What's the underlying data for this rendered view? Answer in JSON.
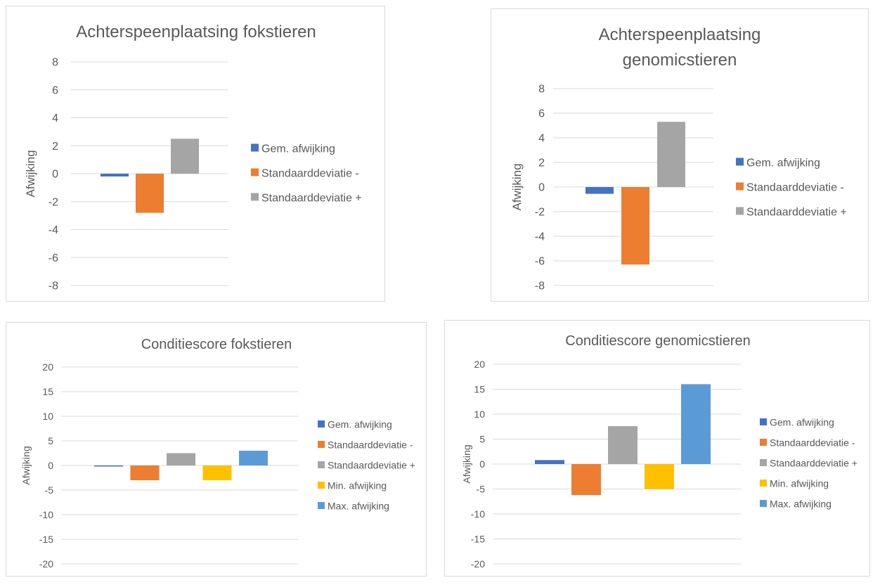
{
  "colors": {
    "gem": "#4472c4",
    "sd_min": "#ed7d31",
    "sd_plus": "#a5a5a5",
    "min": "#ffc000",
    "max": "#5b9bd5",
    "gridline": "#d9d9d9",
    "text": "#595959"
  },
  "chart_data": [
    {
      "type": "bar",
      "title": [
        "Achterspeenplaatsing fokstieren"
      ],
      "ylabel": "Afwijking",
      "ylim": [
        -8,
        8
      ],
      "yticks": [
        "8",
        "6",
        "4",
        "2",
        "0",
        "-2",
        "-4",
        "-6",
        "-8"
      ],
      "grid": true,
      "legend": "right",
      "series": [
        {
          "name": "Gem. afwijking",
          "value": -0.2,
          "color": "#4472c4"
        },
        {
          "name": "Standaarddeviatie -",
          "value": -2.8,
          "color": "#ed7d31"
        },
        {
          "name": "Standaarddeviatie +",
          "value": 2.5,
          "color": "#a5a5a5"
        }
      ]
    },
    {
      "type": "bar",
      "title": [
        "Achterspeenplaatsing",
        "genomicstieren"
      ],
      "ylabel": "Afwijking",
      "ylim": [
        -8,
        8
      ],
      "yticks": [
        "8",
        "6",
        "4",
        "2",
        "0",
        "-2",
        "-4",
        "-6",
        "-8"
      ],
      "grid": true,
      "legend": "right",
      "series": [
        {
          "name": "Gem. afwijking",
          "value": -0.55,
          "color": "#4472c4"
        },
        {
          "name": "Standaarddeviatie -",
          "value": -6.3,
          "color": "#ed7d31"
        },
        {
          "name": "Standaarddeviatie +",
          "value": 5.3,
          "color": "#a5a5a5"
        }
      ]
    },
    {
      "type": "bar",
      "title": [
        "Conditiescore fokstieren"
      ],
      "ylabel": "Afwijking",
      "ylim": [
        -20,
        20
      ],
      "yticks": [
        "20",
        "15",
        "10",
        "5",
        "0",
        "-5",
        "-10",
        "-15",
        "-20"
      ],
      "grid": true,
      "legend": "right",
      "series": [
        {
          "name": "Gem. afwijking",
          "value": -0.2,
          "color": "#4472c4"
        },
        {
          "name": "Standaarddeviatie -",
          "value": -3.0,
          "color": "#ed7d31"
        },
        {
          "name": "Standaarddeviatie +",
          "value": 2.5,
          "color": "#a5a5a5"
        },
        {
          "name": "Min. afwijking",
          "value": -3.0,
          "color": "#ffc000"
        },
        {
          "name": "Max. afwijking",
          "value": 3.0,
          "color": "#5b9bd5"
        }
      ]
    },
    {
      "type": "bar",
      "title": [
        "Conditiescore genomicstieren"
      ],
      "ylabel": "Afwijking",
      "ylim": [
        -20,
        20
      ],
      "yticks": [
        "20",
        "15",
        "10",
        "5",
        "0",
        "-5",
        "-10",
        "-15",
        "-20"
      ],
      "grid": true,
      "legend": "right",
      "series": [
        {
          "name": "Gem. afwijking",
          "value": 0.8,
          "color": "#4472c4"
        },
        {
          "name": "Standaarddeviatie -",
          "value": -6.2,
          "color": "#ed7d31"
        },
        {
          "name": "Standaarddeviatie +",
          "value": 7.6,
          "color": "#a5a5a5"
        },
        {
          "name": "Min. afwijking",
          "value": -5.0,
          "color": "#ffc000"
        },
        {
          "name": "Max. afwijking",
          "value": 16.0,
          "color": "#5b9bd5"
        }
      ]
    }
  ]
}
